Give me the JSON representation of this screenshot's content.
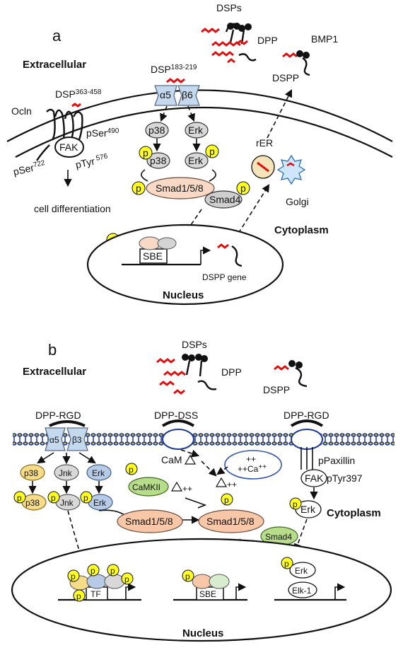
{
  "panel_a": {
    "label": "a",
    "extracellular": "Extracellular",
    "cytoplasm": "Cytoplasm",
    "nucleus": "Nucleus",
    "dsps": "DSPs",
    "dpp": "DPP",
    "bmp1": "BMP1",
    "dspp": "DSPP",
    "dsp183_base": "DSP",
    "dsp183_sup": "183-219",
    "dsp363_base": "DSP",
    "dsp363_sup": "363-458",
    "ocln": "Ocln",
    "fak": "FAK",
    "pser490_base": "pSer",
    "pser490_sup": "490",
    "pser722_base": "pSer",
    "pser722_sup": "722",
    "ptyr576_base": "pTyr",
    "ptyr576_sup": " 576",
    "cell_diff": "cell differentiation",
    "alpha5": "α5",
    "beta6": "β6",
    "p38": "p38",
    "erk": "Erk",
    "p": "p",
    "smad158": "Smad1/5/8",
    "smad4": "Smad4",
    "rer": "rER",
    "golgi": "Golgi",
    "sbe": "SBE",
    "dspp_gene": "DSPP gene"
  },
  "panel_b": {
    "label": "b",
    "extracellular": "Extracellular",
    "cytoplasm": "Cytoplasm",
    "nucleus": "Nucleus",
    "dsps": "DSPs",
    "dpp": "DPP",
    "dspp": "DSPP",
    "dpp_rgd_left": "DPP-RGD",
    "dpp_dss": "DPP-DSS",
    "dpp_rgd_right": "DPP-RGD",
    "alpha5": "α5",
    "beta3": "β3",
    "p38": "p38",
    "jnk": "Jnk",
    "erk": "Erk",
    "p": "p",
    "cam": "CaM",
    "camkii": "CaMKII",
    "ca_ion": "Ca",
    "plus2": "++",
    "smad158": "Smad1/5/8",
    "smad4": "Smad4",
    "ppaxillin": "pPaxillin",
    "fak": "FAK",
    "ptyr397": "pTyr397",
    "elk1": "Elk-1",
    "tf": "TF",
    "sbe": "SBE"
  },
  "colors": {
    "membrane_blue": "#1f3a93",
    "membrane_gold": "#e7c21a",
    "phospho_yellow": "#ffff22",
    "red_peptide": "#e01010",
    "integrin_blue": "#c4d8ee",
    "smad_peach": "#f7c7a8",
    "p38_yellow": "#f6dc88",
    "camkii_green": "#b7dc8a"
  }
}
